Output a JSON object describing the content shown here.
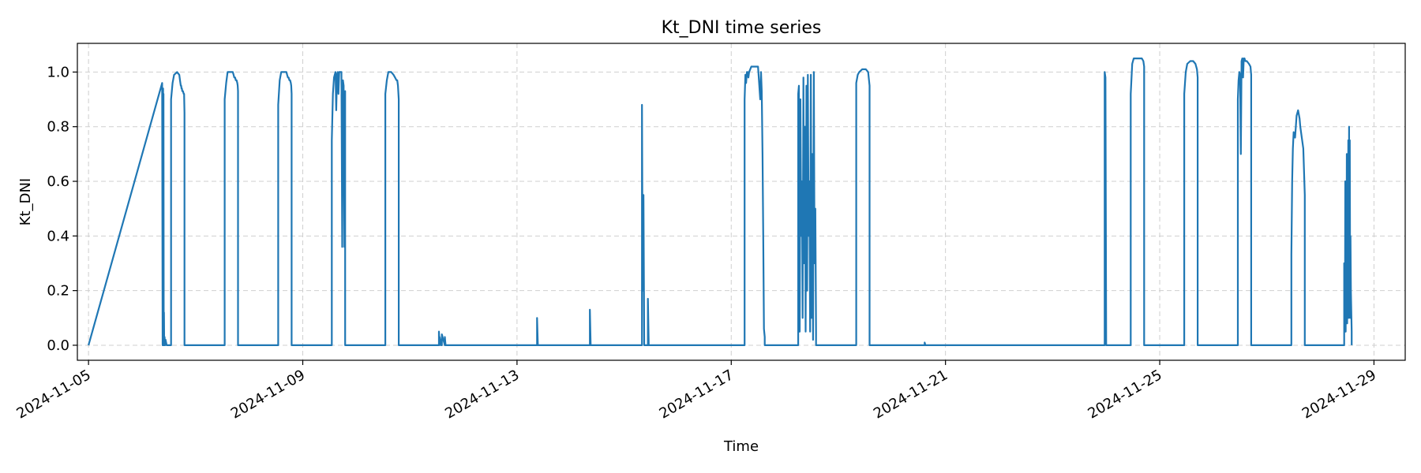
{
  "chart_data": {
    "type": "line",
    "title": "Kt_DNI time series",
    "xlabel": "Time",
    "ylabel": "Kt_DNI",
    "xlim": [
      "2024-11-04T19:00",
      "2024-11-29T14:00"
    ],
    "ylim": [
      -0.055,
      1.105
    ],
    "grid": true,
    "line_color": "#1f77b4",
    "x_ticks": [
      "2024-11-05",
      "2024-11-09",
      "2024-11-13",
      "2024-11-17",
      "2024-11-21",
      "2024-11-25",
      "2024-11-29"
    ],
    "y_ticks": [
      "0.0",
      "0.2",
      "0.4",
      "0.6",
      "0.8",
      "1.0"
    ],
    "series": [
      {
        "x": [
          "2024-11-05T00:00",
          "2024-11-06T09:00",
          "2024-11-06T09:12",
          "2024-11-06T09:24",
          "2024-11-06T09:30",
          "2024-11-06T09:36",
          "2024-11-06T09:42",
          "2024-11-06T09:48",
          "2024-11-06T09:54",
          "2024-11-06T10:06",
          "2024-11-06T10:18",
          "2024-11-06T10:30",
          "2024-11-06T11:00",
          "2024-11-06T13:00",
          "2024-11-06T13:00",
          "2024-11-06T13:40",
          "2024-11-06T14:20",
          "2024-11-06T15:40",
          "2024-11-06T16:40",
          "2024-11-06T17:00",
          "2024-11-06T17:10",
          "2024-11-06T17:20",
          "2024-11-06T17:30",
          "2024-11-06T17:40",
          "2024-11-06T17:50",
          "2024-11-06T18:00",
          "2024-11-06T18:20",
          "2024-11-06T18:40",
          "2024-11-06T18:50",
          "2024-11-06T19:00",
          "2024-11-06T19:00",
          "2024-11-07T13:00",
          "2024-11-07T13:00",
          "2024-11-07T13:40",
          "2024-11-07T14:20",
          "2024-11-07T15:40",
          "2024-11-07T16:40",
          "2024-11-07T17:00",
          "2024-11-07T17:20",
          "2024-11-07T17:40",
          "2024-11-07T18:00",
          "2024-11-07T18:20",
          "2024-11-07T18:40",
          "2024-11-07T18:50",
          "2024-11-07T19:00",
          "2024-11-07T19:00",
          "2024-11-08T13:00",
          "2024-11-08T13:00",
          "2024-11-08T13:40",
          "2024-11-08T14:20",
          "2024-11-08T15:40",
          "2024-11-08T16:40",
          "2024-11-08T17:00",
          "2024-11-08T17:20",
          "2024-11-08T17:40",
          "2024-11-08T18:00",
          "2024-11-08T18:20",
          "2024-11-08T18:40",
          "2024-11-08T18:50",
          "2024-11-08T19:00",
          "2024-11-08T19:00",
          "2024-11-09T13:00",
          "2024-11-09T13:00",
          "2024-11-09T13:30",
          "2024-11-09T14:00",
          "2024-11-09T14:20",
          "2024-11-09T14:40",
          "2024-11-09T15:00",
          "2024-11-09T15:20",
          "2024-11-09T15:40",
          "2024-11-09T16:00",
          "2024-11-09T16:20",
          "2024-11-09T16:40",
          "2024-11-09T17:00",
          "2024-11-09T17:20",
          "2024-11-09T17:40",
          "2024-11-09T18:00",
          "2024-11-09T18:20",
          "2024-11-09T18:40",
          "2024-11-09T19:00",
          "2024-11-09T19:00",
          "2024-11-10T13:00",
          "2024-11-10T13:00",
          "2024-11-10T13:40",
          "2024-11-10T14:20",
          "2024-11-10T15:40",
          "2024-11-10T16:40",
          "2024-11-10T17:20",
          "2024-11-10T18:00",
          "2024-11-10T18:20",
          "2024-11-10T18:40",
          "2024-11-10T19:00",
          "2024-11-10T19:00",
          "2024-11-11T13:00",
          "2024-11-11T13:00",
          "2024-11-11T13:20",
          "2024-11-11T13:20",
          "2024-11-11T14:00",
          "2024-11-11T14:00",
          "2024-11-11T14:20",
          "2024-11-11T14:20",
          "2024-11-11T15:40",
          "2024-11-11T15:40",
          "2024-11-11T16:00",
          "2024-11-11T16:00",
          "2024-11-13T09:00",
          "2024-11-13T09:00",
          "2024-11-13T09:20",
          "2024-11-13T09:20",
          "2024-11-14T08:40",
          "2024-11-14T08:40",
          "2024-11-14T09:00",
          "2024-11-14T09:00",
          "2024-11-15T08:00",
          "2024-11-15T08:00",
          "2024-11-15T08:20",
          "2024-11-15T08:40",
          "2024-11-15T09:00",
          "2024-11-15T09:00",
          "2024-11-15T10:40",
          "2024-11-15T10:40",
          "2024-11-15T11:00",
          "2024-11-15T11:00",
          "2024-11-17T06:00",
          "2024-11-17T06:00",
          "2024-11-17T06:20",
          "2024-11-17T06:40",
          "2024-11-17T07:00",
          "2024-11-17T07:20",
          "2024-11-17T07:40",
          "2024-11-17T08:00",
          "2024-11-17T09:00",
          "2024-11-17T10:00",
          "2024-11-17T11:00",
          "2024-11-17T12:00",
          "2024-11-17T13:00",
          "2024-11-17T13:20",
          "2024-11-17T13:40",
          "2024-11-17T14:00",
          "2024-11-17T14:20",
          "2024-11-17T14:40",
          "2024-11-17T15:00",
          "2024-11-17T15:00",
          "2024-11-18T06:00",
          "2024-11-18T06:00",
          "2024-11-18T06:20",
          "2024-11-18T06:40",
          "2024-11-18T07:00",
          "2024-11-18T07:20",
          "2024-11-18T07:40",
          "2024-11-18T08:00",
          "2024-11-18T08:20",
          "2024-11-18T08:40",
          "2024-11-18T09:00",
          "2024-11-18T09:20",
          "2024-11-18T09:40",
          "2024-11-18T10:00",
          "2024-11-18T10:20",
          "2024-11-18T10:40",
          "2024-11-18T11:00",
          "2024-11-18T11:20",
          "2024-11-18T11:40",
          "2024-11-18T12:00",
          "2024-11-18T12:20",
          "2024-11-18T12:40",
          "2024-11-18T13:00",
          "2024-11-18T13:20",
          "2024-11-18T13:40",
          "2024-11-18T14:00",
          "2024-11-18T14:00",
          "2024-11-19T08:00",
          "2024-11-19T08:00",
          "2024-11-19T08:40",
          "2024-11-19T09:20",
          "2024-11-19T10:40",
          "2024-11-19T12:20",
          "2024-11-19T13:20",
          "2024-11-19T14:00",
          "2024-11-19T14:00",
          "2024-11-20T14:40",
          "2024-11-20T14:40",
          "2024-11-20T15:00",
          "2024-11-20T15:00",
          "2024-11-23T23:20",
          "2024-11-23T23:20",
          "2024-11-23T23:40",
          "2024-11-24T00:00",
          "2024-11-24T00:00",
          "2024-11-24T11:00",
          "2024-11-24T11:00",
          "2024-11-24T11:40",
          "2024-11-24T12:20",
          "2024-11-24T13:40",
          "2024-11-24T15:00",
          "2024-11-24T16:00",
          "2024-11-24T16:40",
          "2024-11-24T17:00",
          "2024-11-24T17:00",
          "2024-11-25T11:00",
          "2024-11-25T11:00",
          "2024-11-25T11:40",
          "2024-11-25T12:20",
          "2024-11-25T13:40",
          "2024-11-25T15:00",
          "2024-11-25T16:00",
          "2024-11-25T16:40",
          "2024-11-25T17:00",
          "2024-11-25T17:00",
          "2024-11-26T11:00",
          "2024-11-26T11:00",
          "2024-11-26T11:20",
          "2024-11-26T11:40",
          "2024-11-26T12:00",
          "2024-11-26T12:20",
          "2024-11-26T12:40",
          "2024-11-26T13:00",
          "2024-11-26T13:20",
          "2024-11-26T13:40",
          "2024-11-26T14:00",
          "2024-11-26T14:20",
          "2024-11-26T15:00",
          "2024-11-26T16:00",
          "2024-11-26T16:40",
          "2024-11-26T17:00",
          "2024-11-26T17:00",
          "2024-11-27T11:00",
          "2024-11-27T11:00",
          "2024-11-27T11:20",
          "2024-11-27T11:40",
          "2024-11-27T12:00",
          "2024-11-27T12:40",
          "2024-11-27T13:20",
          "2024-11-27T14:00",
          "2024-11-27T14:40",
          "2024-11-27T15:00",
          "2024-11-27T15:40",
          "2024-11-27T16:20",
          "2024-11-27T17:00",
          "2024-11-27T17:00",
          "2024-11-28T10:40",
          "2024-11-28T10:40",
          "2024-11-28T11:00",
          "2024-11-28T11:10",
          "2024-11-28T11:20",
          "2024-11-28T11:30",
          "2024-11-28T11:40",
          "2024-11-28T11:50",
          "2024-11-28T12:00",
          "2024-11-28T12:10",
          "2024-11-28T12:20",
          "2024-11-28T12:30",
          "2024-11-28T12:40",
          "2024-11-28T12:50",
          "2024-11-28T13:00",
          "2024-11-28T13:10",
          "2024-11-28T13:20",
          "2024-11-28T13:30",
          "2024-11-28T13:40",
          "2024-11-28T14:00",
          "2024-11-28T14:00"
        ],
        "y": [
          0,
          0.96,
          0,
          0.94,
          0.1,
          0.92,
          0,
          0.12,
          0,
          0.03,
          0,
          0.02,
          0,
          0,
          0.9,
          0.96,
          0.99,
          1.0,
          0.99,
          0.97,
          0.96,
          0.95,
          0.95,
          0.94,
          0.94,
          0.93,
          0.93,
          0.92,
          0.92,
          0.85,
          0,
          0,
          0.9,
          0.96,
          1.0,
          1.0,
          1.0,
          0.99,
          0.98,
          0.98,
          0.97,
          0.97,
          0.96,
          0.95,
          0.93,
          0,
          0,
          0.88,
          0.97,
          1.0,
          1.0,
          1.0,
          0.99,
          0.98,
          0.98,
          0.97,
          0.97,
          0.96,
          0.95,
          0.92,
          0,
          0,
          0.75,
          0.92,
          0.98,
          0.99,
          1.0,
          0.86,
          0.99,
          1.0,
          0.92,
          1.0,
          1.0,
          1.0,
          1.0,
          0.36,
          0.97,
          0.95,
          0.36,
          0.93,
          0,
          0,
          0.92,
          0.97,
          1.0,
          1.0,
          0.99,
          0.98,
          0.97,
          0.97,
          0.95,
          0.9,
          0,
          0,
          0.05,
          0,
          0.03,
          0,
          0.02,
          0,
          0.04,
          0,
          0.03,
          0,
          0,
          0,
          0.1,
          0,
          0,
          0,
          0.13,
          0,
          0,
          0,
          0.88,
          0.2,
          0.55,
          0.02,
          0,
          0,
          0.17,
          0.01,
          0,
          0,
          0.9,
          0.99,
          0.96,
          1.0,
          1.0,
          0.98,
          1.0,
          1.02,
          1.02,
          1.02,
          1.02,
          0.9,
          1.0,
          0.93,
          0.7,
          0.4,
          0.06,
          0.03,
          0,
          0,
          0.92,
          0.95,
          0.05,
          0.9,
          0.4,
          0.6,
          0.1,
          0.98,
          0.3,
          0.8,
          0.05,
          0.95,
          0.2,
          0.99,
          0.4,
          0.6,
          0.05,
          0.99,
          0.1,
          0.7,
          0.02,
          1.0,
          0.3,
          0.5,
          0.05,
          0,
          0,
          0.96,
          0.99,
          1.0,
          1.01,
          1.01,
          1.0,
          0.95,
          0,
          0,
          0.01,
          0,
          0,
          0,
          1.0,
          0.98,
          0.02,
          0,
          0,
          0.92,
          1.03,
          1.05,
          1.05,
          1.05,
          1.05,
          1.04,
          1.02,
          0,
          0,
          0.92,
          1.0,
          1.03,
          1.04,
          1.04,
          1.03,
          1.01,
          0.98,
          0,
          0,
          0.9,
          0.97,
          1.0,
          0.99,
          0.7,
          1.04,
          1.05,
          0.98,
          1.05,
          1.05,
          1.04,
          1.04,
          1.03,
          1.02,
          0.99,
          0,
          0,
          0.33,
          0.6,
          0.72,
          0.78,
          0.76,
          0.84,
          0.86,
          0.83,
          0.8,
          0.76,
          0.72,
          0.55,
          0,
          0,
          0.3,
          0.1,
          0.6,
          0.05,
          0.55,
          0.15,
          0.7,
          0.08,
          0.65,
          0.2,
          0.75,
          0.1,
          0.8,
          0.25,
          0.75,
          0.1,
          0.4,
          0.2,
          0.05,
          0
        ]
      }
    ]
  }
}
